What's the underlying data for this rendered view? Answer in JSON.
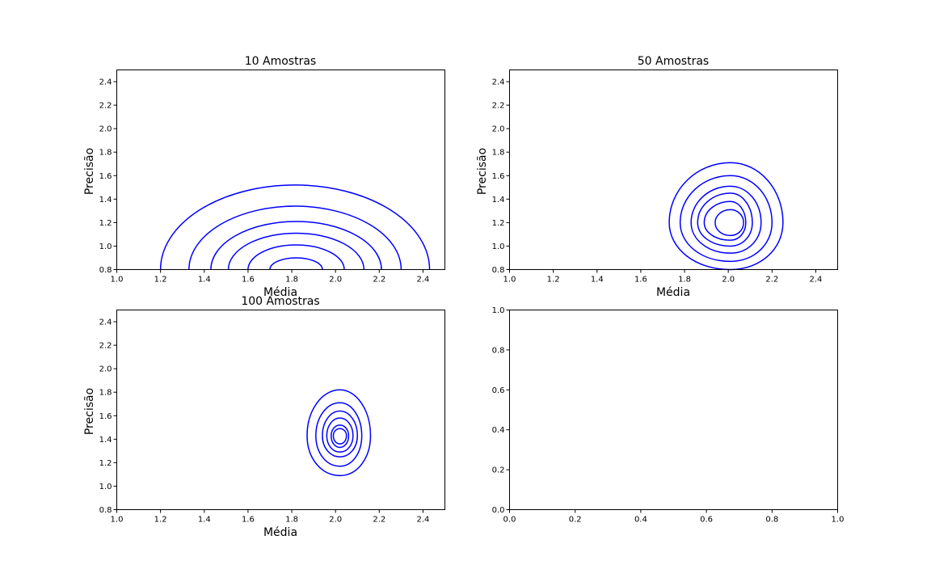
{
  "chart_data": [
    {
      "type": "contour",
      "title": "10 Amostras",
      "xlabel": "Média",
      "ylabel": "Precisão",
      "xlim": [
        1.0,
        2.5
      ],
      "ylim": [
        0.8,
        2.5
      ],
      "xticks": [
        "1.0",
        "1.2",
        "1.4",
        "1.6",
        "1.8",
        "2.0",
        "2.2",
        "2.4"
      ],
      "yticks": [
        "0.8",
        "1.0",
        "1.2",
        "1.4",
        "1.6",
        "1.8",
        "2.0",
        "2.2",
        "2.4"
      ],
      "grid": false,
      "color": "#0000ff",
      "center": [
        1.82,
        0.8
      ],
      "levels": [
        {
          "x_min": 1.2,
          "x_max": 2.43,
          "y_max": 1.52
        },
        {
          "x_min": 1.33,
          "x_max": 2.3,
          "y_max": 1.34
        },
        {
          "x_min": 1.43,
          "x_max": 2.21,
          "y_max": 1.21
        },
        {
          "x_min": 1.51,
          "x_max": 2.13,
          "y_max": 1.11
        },
        {
          "x_min": 1.6,
          "x_max": 2.04,
          "y_max": 1.01
        },
        {
          "x_min": 1.7,
          "x_max": 1.94,
          "y_max": 0.9
        }
      ]
    },
    {
      "type": "contour",
      "title": "50 Amostras",
      "xlabel": "Média",
      "ylabel": "Precisão",
      "xlim": [
        1.0,
        2.5
      ],
      "ylim": [
        0.8,
        2.5
      ],
      "xticks": [
        "1.0",
        "1.2",
        "1.4",
        "1.6",
        "1.8",
        "2.0",
        "2.2",
        "2.4"
      ],
      "yticks": [
        "0.8",
        "1.0",
        "1.2",
        "1.4",
        "1.6",
        "1.8",
        "2.0",
        "2.2",
        "2.4"
      ],
      "grid": false,
      "color": "#0000ff",
      "center": [
        2.01,
        1.2
      ],
      "levels": [
        {
          "x_min": 1.73,
          "x_max": 2.25,
          "y_min": 0.8,
          "y_max": 1.71
        },
        {
          "x_min": 1.78,
          "x_max": 2.2,
          "y_min": 0.87,
          "y_max": 1.6
        },
        {
          "x_min": 1.83,
          "x_max": 2.15,
          "y_min": 0.94,
          "y_max": 1.51
        },
        {
          "x_min": 1.86,
          "x_max": 2.11,
          "y_min": 1.0,
          "y_max": 1.45
        },
        {
          "x_min": 1.89,
          "x_max": 2.08,
          "y_min": 1.05,
          "y_max": 1.38
        },
        {
          "x_min": 1.94,
          "x_max": 2.07,
          "y_min": 1.09,
          "y_max": 1.31
        }
      ]
    },
    {
      "type": "contour",
      "title": "100 Amostras",
      "xlabel": "Média",
      "ylabel": "Precisão",
      "xlim": [
        1.0,
        2.5
      ],
      "ylim": [
        0.8,
        2.5
      ],
      "xticks": [
        "1.0",
        "1.2",
        "1.4",
        "1.6",
        "1.8",
        "2.0",
        "2.2",
        "2.4"
      ],
      "yticks": [
        "0.8",
        "1.0",
        "1.2",
        "1.4",
        "1.6",
        "1.8",
        "2.0",
        "2.2",
        "2.4"
      ],
      "grid": false,
      "color": "#0000ff",
      "center": [
        2.02,
        1.43
      ],
      "levels": [
        {
          "x_min": 1.87,
          "x_max": 2.16,
          "y_min": 1.09,
          "y_max": 1.82
        },
        {
          "x_min": 1.91,
          "x_max": 2.12,
          "y_min": 1.17,
          "y_max": 1.71
        },
        {
          "x_min": 1.94,
          "x_max": 2.1,
          "y_min": 1.25,
          "y_max": 1.64
        },
        {
          "x_min": 1.96,
          "x_max": 2.08,
          "y_min": 1.29,
          "y_max": 1.58
        },
        {
          "x_min": 1.98,
          "x_max": 2.06,
          "y_min": 1.33,
          "y_max": 1.52
        },
        {
          "x_min": 1.99,
          "x_max": 2.05,
          "y_min": 1.36,
          "y_max": 1.49
        }
      ]
    },
    {
      "type": "empty",
      "title": "",
      "xlabel": "",
      "ylabel": "",
      "xlim": [
        0.0,
        1.0
      ],
      "ylim": [
        0.0,
        1.0
      ],
      "xticks": [
        "0.0",
        "0.2",
        "0.4",
        "0.6",
        "0.8",
        "1.0"
      ],
      "yticks": [
        "0.0",
        "0.2",
        "0.4",
        "0.6",
        "0.8",
        "1.0"
      ],
      "grid": false,
      "levels": []
    }
  ]
}
